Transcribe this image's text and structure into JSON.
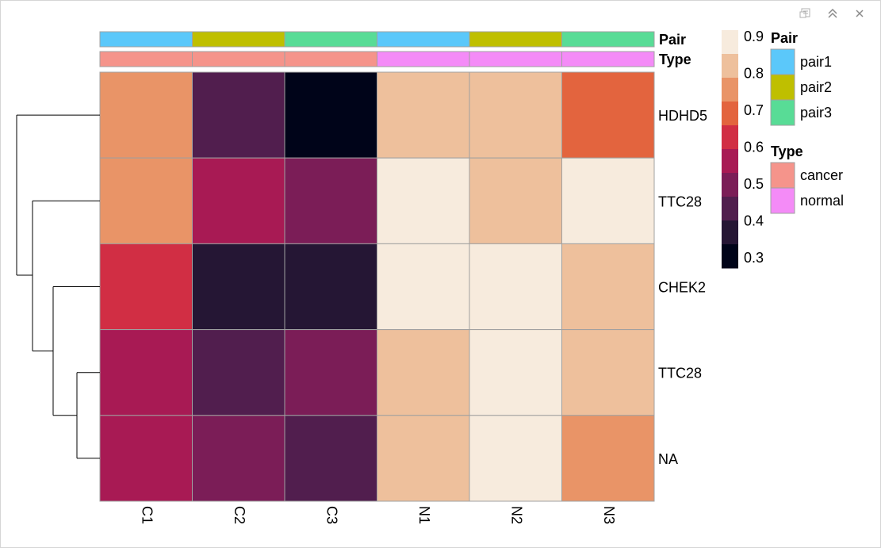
{
  "window": {
    "icons": [
      "export-icon",
      "collapse-icon",
      "close-icon"
    ]
  },
  "chart_data": {
    "type": "heatmap",
    "columns": [
      "C1",
      "C2",
      "C3",
      "N1",
      "N2",
      "N3"
    ],
    "rows": [
      "HDHD5",
      "TTC28",
      "CHEK2",
      "TTC28",
      "NA"
    ],
    "values": [
      [
        0.75,
        0.45,
        0.3,
        0.82,
        0.82,
        0.68
      ],
      [
        0.75,
        0.55,
        0.5,
        0.9,
        0.82,
        0.9
      ],
      [
        0.62,
        0.38,
        0.38,
        0.9,
        0.9,
        0.82
      ],
      [
        0.55,
        0.45,
        0.5,
        0.82,
        0.9,
        0.82
      ],
      [
        0.55,
        0.5,
        0.45,
        0.82,
        0.9,
        0.75
      ]
    ],
    "annotations": [
      {
        "name": "Pair",
        "values": [
          "pair1",
          "pair2",
          "pair3",
          "pair1",
          "pair2",
          "pair3"
        ]
      },
      {
        "name": "Type",
        "values": [
          "cancer",
          "cancer",
          "cancer",
          "normal",
          "normal",
          "normal"
        ]
      }
    ],
    "color_scale": {
      "ticks": [
        "0.9",
        "0.8",
        "0.7",
        "0.6",
        "0.5",
        "0.4",
        "0.3"
      ],
      "colors": [
        "#000419",
        "#251634",
        "#511e4e",
        "#7b1d57",
        "#a81a54",
        "#d12e44",
        "#e3643e",
        "#e99467",
        "#eec09c",
        "#f7ebdd"
      ],
      "range": [
        0.3,
        0.9
      ]
    },
    "legends": [
      {
        "title": "Pair",
        "entries": [
          {
            "label": "pair1",
            "color": "#5bc8fa"
          },
          {
            "label": "pair2",
            "color": "#bfbf00"
          },
          {
            "label": "pair3",
            "color": "#58dc96"
          }
        ]
      },
      {
        "title": "Type",
        "entries": [
          {
            "label": "cancer",
            "color": "#f5948b"
          },
          {
            "label": "normal",
            "color": "#f48bf7"
          }
        ]
      }
    ],
    "row_dendrogram": true
  }
}
